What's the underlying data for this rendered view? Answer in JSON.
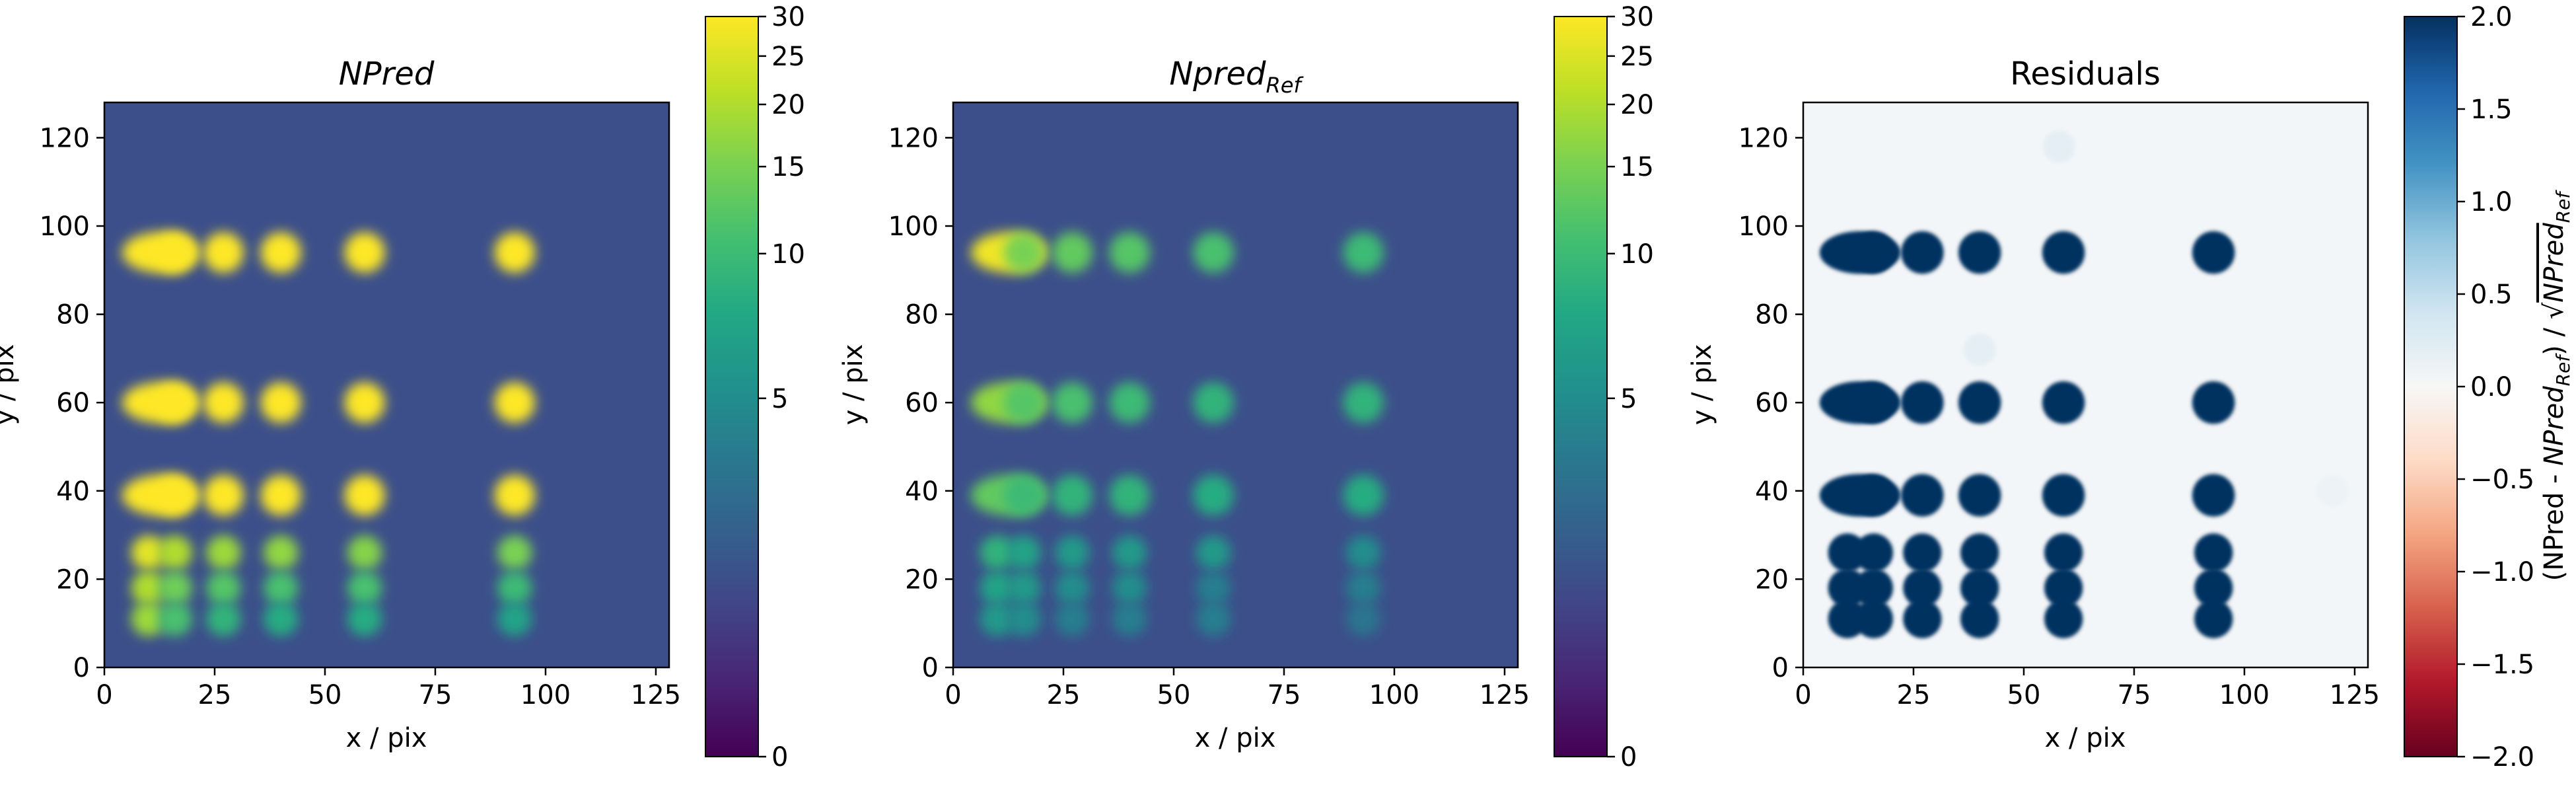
{
  "figure": {
    "panels": [
      {
        "title": "NPred",
        "title_style": "italic",
        "xlabel": "x / pix",
        "ylabel": "y / pix",
        "cmap": "viridis",
        "colorbar": {
          "ticks": [
            "0",
            "5",
            "10",
            "15",
            "20",
            "25",
            "30"
          ],
          "scale": "asinh",
          "label": ""
        }
      },
      {
        "title": "Npred",
        "title_sub": "Ref",
        "title_style": "italic",
        "xlabel": "x / pix",
        "ylabel": "y / pix",
        "cmap": "viridis",
        "colorbar": {
          "ticks": [
            "0",
            "5",
            "10",
            "15",
            "20",
            "25",
            "30"
          ],
          "scale": "asinh",
          "label": ""
        }
      },
      {
        "title": "Residuals",
        "title_style": "normal",
        "xlabel": "x / pix",
        "ylabel": "y / pix",
        "cmap": "RdBu",
        "colorbar": {
          "ticks": [
            "−2.0",
            "−1.5",
            "−1.0",
            "−0.5",
            "0.0",
            "0.5",
            "1.0",
            "1.5",
            "2.0"
          ],
          "scale": "linear",
          "label_parts": [
            "(NPred - ",
            "NPred",
            "Ref",
            ") / √",
            "NPred",
            "Ref"
          ]
        }
      }
    ],
    "x_ticks": [
      "0",
      "25",
      "50",
      "75",
      "100",
      "125"
    ],
    "y_ticks": [
      "0",
      "20",
      "40",
      "60",
      "80",
      "100",
      "120"
    ]
  },
  "chart_data": [
    {
      "type": "heatmap",
      "title": "NPred",
      "xlabel": "x / pix",
      "ylabel": "y / pix",
      "xlim": [
        0,
        128
      ],
      "ylim": [
        0,
        128
      ],
      "colorbar_range": [
        0,
        30
      ],
      "colorbar_scale": "asinh",
      "background_value": 2.2,
      "source_columns_x": [
        10,
        16,
        27,
        40,
        59,
        93
      ],
      "source_rows_y": [
        94,
        60,
        39,
        26,
        18,
        11
      ],
      "source_peak_values": [
        [
          30,
          30,
          30,
          30,
          30,
          30
        ],
        [
          30,
          30,
          30,
          30,
          30,
          30
        ],
        [
          30,
          30,
          30,
          30,
          30,
          30
        ],
        [
          26,
          20,
          18,
          17,
          16,
          15
        ],
        [
          20,
          14,
          12,
          11,
          11,
          10
        ],
        [
          18,
          11,
          9,
          8,
          8,
          7
        ]
      ]
    },
    {
      "type": "heatmap",
      "title": "Npred_Ref",
      "xlabel": "x / pix",
      "ylabel": "y / pix",
      "xlim": [
        0,
        128
      ],
      "ylim": [
        0,
        128
      ],
      "colorbar_range": [
        0,
        30
      ],
      "colorbar_scale": "asinh",
      "background_value": 2.2,
      "source_columns_x": [
        10,
        16,
        27,
        40,
        59,
        93
      ],
      "source_rows_y": [
        94,
        60,
        39,
        26,
        18,
        11
      ],
      "source_peak_values": [
        [
          28,
          15,
          13,
          12,
          11,
          10
        ],
        [
          17,
          12,
          11,
          10,
          9,
          9
        ],
        [
          13,
          10,
          9,
          9,
          8,
          8
        ],
        [
          9,
          7,
          6,
          6,
          6,
          5
        ],
        [
          7,
          6,
          5,
          5,
          4,
          4
        ],
        [
          6,
          5,
          4,
          4,
          4,
          3.5
        ]
      ]
    },
    {
      "type": "heatmap",
      "title": "Residuals",
      "xlabel": "x / pix",
      "ylabel": "y / pix",
      "xlim": [
        0,
        128
      ],
      "ylim": [
        0,
        128
      ],
      "colorbar_range": [
        -2.0,
        2.0
      ],
      "colorbar_scale": "linear",
      "background_value": 0.05,
      "source_columns_x": [
        10,
        16,
        27,
        40,
        59,
        93
      ],
      "source_rows_y": [
        94,
        60,
        39,
        26,
        18,
        11
      ],
      "source_peak_values": [
        [
          2,
          2,
          2,
          2,
          2,
          2
        ],
        [
          2,
          2,
          2,
          2,
          2,
          2
        ],
        [
          2,
          2,
          2,
          2,
          2,
          2
        ],
        [
          2,
          2,
          2,
          2,
          2,
          2
        ],
        [
          2,
          2,
          2,
          2,
          2,
          2
        ],
        [
          2,
          2,
          2,
          2,
          2,
          2
        ]
      ],
      "faint_features": [
        {
          "x": 58,
          "y": 118,
          "value": 0.3
        },
        {
          "x": 40,
          "y": 72,
          "value": 0.3
        },
        {
          "x": 120,
          "y": 40,
          "value": 0.15
        }
      ]
    }
  ]
}
